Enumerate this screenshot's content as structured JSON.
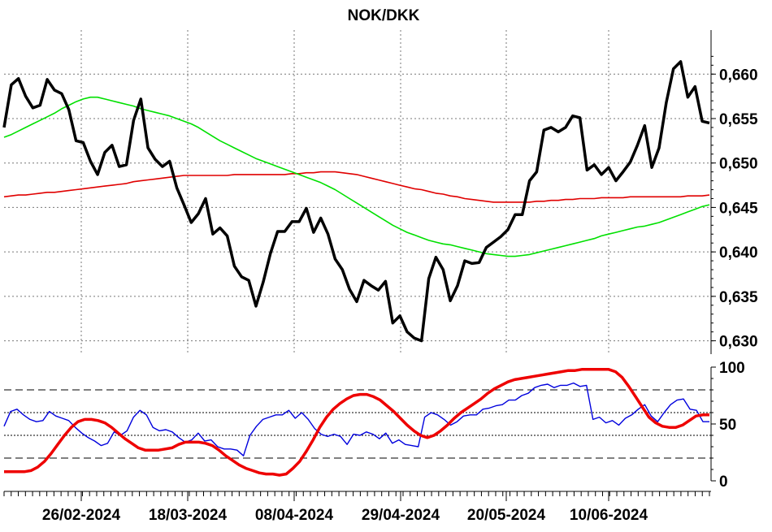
{
  "chart_data": [
    {
      "type": "line",
      "title": "NOK/DKK",
      "ylim": [
        0.6285,
        0.6645
      ],
      "y_ticks": [
        "0,660",
        "0,655",
        "0,650",
        "0,645",
        "0,640",
        "0,635",
        "0,630"
      ],
      "y_tick_values": [
        0.66,
        0.655,
        0.65,
        0.645,
        0.64,
        0.635,
        0.63
      ],
      "x_tick_labels": [
        "26/02-2024",
        "18/03-2024",
        "08/04-2024",
        "29/04-2024",
        "20/05-2024",
        "10/06-2024"
      ],
      "grid": true,
      "series": [
        {
          "color": "#000000",
          "values": [
            0.654,
            0.6588,
            0.6595,
            0.6575,
            0.6562,
            0.6565,
            0.6594,
            0.6582,
            0.6578,
            0.656,
            0.6525,
            0.6523,
            0.6502,
            0.6487,
            0.6512,
            0.652,
            0.6496,
            0.6498,
            0.6548,
            0.6572,
            0.6517,
            0.6504,
            0.6496,
            0.6502,
            0.6472,
            0.6453,
            0.6433,
            0.6443,
            0.646,
            0.642,
            0.6427,
            0.6418,
            0.6384,
            0.6372,
            0.6368,
            0.6339,
            0.6366,
            0.6398,
            0.6423,
            0.6423,
            0.6434,
            0.6434,
            0.6449,
            0.6422,
            0.6438,
            0.642,
            0.6392,
            0.638,
            0.6358,
            0.6344,
            0.6368,
            0.6362,
            0.6357,
            0.6367,
            0.632,
            0.6328,
            0.631,
            0.6303,
            0.63,
            0.637,
            0.6394,
            0.638,
            0.6345,
            0.6362,
            0.639,
            0.6387,
            0.6388,
            0.6405,
            0.6411,
            0.6417,
            0.6425,
            0.6442,
            0.6442,
            0.648,
            0.649,
            0.6537,
            0.654,
            0.6535,
            0.654,
            0.6553,
            0.6551,
            0.6492,
            0.6498,
            0.6487,
            0.6495,
            0.648,
            0.649,
            0.6501,
            0.652,
            0.6542,
            0.6495,
            0.6517,
            0.6568,
            0.6606,
            0.6614,
            0.6574,
            0.6586,
            0.6547,
            0.6545
          ]
        },
        {
          "color": "#00e000",
          "values": [
            0.6529,
            0.6532,
            0.6536,
            0.654,
            0.6544,
            0.6548,
            0.6552,
            0.6556,
            0.6561,
            0.6565,
            0.6569,
            0.6572,
            0.6574,
            0.6574,
            0.6572,
            0.657,
            0.6568,
            0.6566,
            0.6564,
            0.6561,
            0.6559,
            0.6557,
            0.6555,
            0.6553,
            0.655,
            0.6547,
            0.6544,
            0.654,
            0.6535,
            0.653,
            0.6525,
            0.6521,
            0.6517,
            0.6513,
            0.6509,
            0.6505,
            0.6502,
            0.6499,
            0.6496,
            0.6493,
            0.649,
            0.6487,
            0.6484,
            0.6481,
            0.6478,
            0.6474,
            0.647,
            0.6465,
            0.646,
            0.6455,
            0.645,
            0.6445,
            0.644,
            0.6435,
            0.643,
            0.6426,
            0.6422,
            0.6419,
            0.6416,
            0.6413,
            0.6411,
            0.6409,
            0.6408,
            0.6406,
            0.6404,
            0.6402,
            0.64,
            0.6398,
            0.6397,
            0.6396,
            0.6395,
            0.6395,
            0.6396,
            0.6397,
            0.6399,
            0.6401,
            0.6403,
            0.6405,
            0.6407,
            0.6409,
            0.6411,
            0.6413,
            0.6415,
            0.6418,
            0.642,
            0.6422,
            0.6424,
            0.6426,
            0.6428,
            0.6429,
            0.6431,
            0.6433,
            0.6436,
            0.6439,
            0.6442,
            0.6445,
            0.6448,
            0.6451,
            0.6453
          ]
        },
        {
          "color": "#e00000",
          "values": [
            0.6462,
            0.6463,
            0.6464,
            0.6464,
            0.6465,
            0.6466,
            0.6467,
            0.6467,
            0.6468,
            0.6469,
            0.647,
            0.6471,
            0.6472,
            0.6473,
            0.6474,
            0.6475,
            0.6476,
            0.6477,
            0.6479,
            0.648,
            0.6481,
            0.6482,
            0.6483,
            0.6484,
            0.6485,
            0.6486,
            0.6486,
            0.6486,
            0.6486,
            0.6486,
            0.6486,
            0.6486,
            0.6487,
            0.6487,
            0.6487,
            0.6487,
            0.6487,
            0.6487,
            0.6487,
            0.6487,
            0.6488,
            0.6488,
            0.6489,
            0.6489,
            0.649,
            0.649,
            0.649,
            0.6489,
            0.6488,
            0.6487,
            0.6485,
            0.6483,
            0.6481,
            0.6479,
            0.6477,
            0.6475,
            0.6473,
            0.6471,
            0.647,
            0.6468,
            0.6466,
            0.6465,
            0.6463,
            0.6462,
            0.646,
            0.6459,
            0.6458,
            0.6457,
            0.6456,
            0.6456,
            0.6456,
            0.6456,
            0.6456,
            0.6456,
            0.6457,
            0.6457,
            0.6458,
            0.6458,
            0.6459,
            0.6459,
            0.646,
            0.646,
            0.646,
            0.6461,
            0.6461,
            0.6461,
            0.6461,
            0.6462,
            0.6462,
            0.6462,
            0.6462,
            0.6462,
            0.6462,
            0.6462,
            0.6462,
            0.6463,
            0.6463,
            0.6463,
            0.6464
          ]
        }
      ]
    },
    {
      "type": "line",
      "ylim": [
        0,
        100
      ],
      "y_ticks": [
        "100",
        "50",
        "0"
      ],
      "y_tick_values": [
        100,
        50,
        0
      ],
      "reference_lines_dashed": [
        80,
        20
      ],
      "reference_lines_dotted": [
        60,
        40
      ],
      "series": [
        {
          "color": "#0000dd",
          "values": [
            48,
            61,
            63,
            58,
            54,
            52,
            53,
            61,
            57,
            55,
            53,
            47,
            42,
            38,
            35,
            31,
            33,
            43,
            40,
            44,
            56,
            62,
            58,
            47,
            44,
            45,
            43,
            38,
            34,
            36,
            42,
            35,
            36,
            30,
            28,
            28,
            27,
            22,
            40,
            48,
            54,
            56,
            58,
            58,
            62,
            55,
            60,
            54,
            46,
            41,
            39,
            41,
            39,
            32,
            41,
            40,
            43,
            41,
            37,
            42,
            33,
            36,
            32,
            31,
            30,
            56,
            60,
            58,
            54,
            49,
            52,
            57,
            58,
            58,
            63,
            64,
            66,
            67,
            71,
            71,
            75,
            77,
            82,
            84,
            85,
            82,
            84,
            84,
            86,
            83,
            84,
            54,
            56,
            51,
            53,
            49,
            55,
            58,
            63,
            67,
            57,
            52,
            60,
            67,
            71,
            72,
            63,
            62,
            52,
            52
          ]
        },
        {
          "color": "#ee0000",
          "values": [
            8,
            8,
            8,
            8,
            9,
            12,
            17,
            24,
            32,
            40,
            47,
            52,
            54,
            54,
            53,
            51,
            47,
            42,
            37,
            33,
            29,
            27,
            27,
            27,
            28,
            29,
            32,
            34,
            34,
            34,
            33,
            31,
            27,
            22,
            18,
            14,
            11,
            9,
            7,
            6,
            6,
            5,
            6,
            11,
            17,
            26,
            36,
            47,
            56,
            63,
            68,
            72,
            75,
            76,
            76,
            74,
            71,
            66,
            61,
            55,
            49,
            44,
            40,
            38,
            40,
            44,
            49,
            55,
            60,
            64,
            68,
            72,
            77,
            81,
            84,
            87,
            89,
            90,
            91,
            92,
            93,
            94,
            95,
            96,
            97,
            97,
            98,
            98,
            98,
            98,
            98,
            96,
            91,
            83,
            74,
            65,
            56,
            51,
            48,
            47,
            47,
            49,
            53,
            57,
            58,
            58
          ]
        }
      ]
    }
  ],
  "x_axis": {
    "labels": [
      "26/02-2024",
      "18/03-2024",
      "08/04-2024",
      "29/04-2024",
      "20/05-2024",
      "10/06-2024"
    ]
  }
}
